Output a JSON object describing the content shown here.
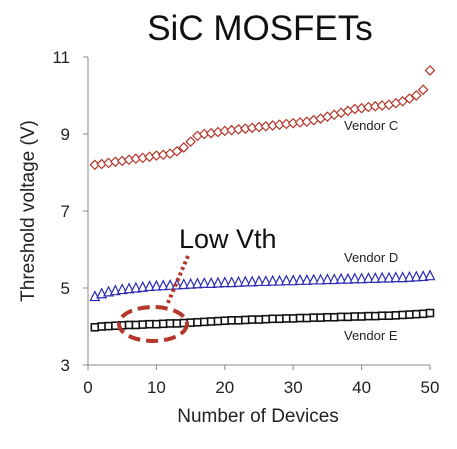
{
  "chart_data": {
    "type": "scatter",
    "title": "SiC MOSFETs",
    "xlabel": "Number of Devices",
    "ylabel": "Threshold voltage (V)",
    "xlim": [
      0,
      50
    ],
    "ylim": [
      3,
      11
    ],
    "xticks": [
      "0",
      "10",
      "20",
      "30",
      "40",
      "50"
    ],
    "yticks": [
      "3",
      "5",
      "7",
      "9",
      "11"
    ],
    "grid": false,
    "series": [
      {
        "name": "Vendor C",
        "marker": "diamond",
        "color": "#b5362a",
        "x": [
          1,
          2,
          3,
          4,
          5,
          6,
          7,
          8,
          9,
          10,
          11,
          12,
          13,
          14,
          15,
          16,
          17,
          18,
          19,
          20,
          21,
          22,
          23,
          24,
          25,
          26,
          27,
          28,
          29,
          30,
          31,
          32,
          33,
          34,
          35,
          36,
          37,
          38,
          39,
          40,
          41,
          42,
          43,
          44,
          45,
          46,
          47,
          48,
          49,
          50
        ],
        "values": [
          8.2,
          8.22,
          8.25,
          8.28,
          8.3,
          8.33,
          8.36,
          8.38,
          8.41,
          8.44,
          8.46,
          8.49,
          8.55,
          8.65,
          8.8,
          8.95,
          9.0,
          9.02,
          9.05,
          9.08,
          9.1,
          9.12,
          9.14,
          9.16,
          9.18,
          9.2,
          9.22,
          9.24,
          9.26,
          9.28,
          9.3,
          9.32,
          9.36,
          9.4,
          9.45,
          9.5,
          9.55,
          9.6,
          9.65,
          9.67,
          9.7,
          9.72,
          9.74,
          9.76,
          9.8,
          9.85,
          9.92,
          10.0,
          10.15,
          10.65
        ]
      },
      {
        "name": "Vendor D",
        "marker": "triangle",
        "color": "#2a2ab5",
        "x": [
          1,
          2,
          3,
          4,
          5,
          6,
          7,
          8,
          9,
          10,
          11,
          12,
          13,
          14,
          15,
          16,
          17,
          18,
          19,
          20,
          21,
          22,
          23,
          24,
          25,
          26,
          27,
          28,
          29,
          30,
          31,
          32,
          33,
          34,
          35,
          36,
          37,
          38,
          39,
          40,
          41,
          42,
          43,
          44,
          45,
          46,
          47,
          48,
          49,
          50
        ],
        "values": [
          4.78,
          4.85,
          4.9,
          4.93,
          4.96,
          4.98,
          5.0,
          5.02,
          5.04,
          5.05,
          5.06,
          5.07,
          5.08,
          5.09,
          5.1,
          5.11,
          5.12,
          5.12,
          5.13,
          5.14,
          5.14,
          5.15,
          5.16,
          5.16,
          5.17,
          5.17,
          5.18,
          5.18,
          5.19,
          5.19,
          5.2,
          5.2,
          5.21,
          5.21,
          5.22,
          5.22,
          5.23,
          5.23,
          5.24,
          5.24,
          5.25,
          5.25,
          5.26,
          5.26,
          5.27,
          5.27,
          5.28,
          5.29,
          5.3,
          5.32
        ]
      },
      {
        "name": "Vendor E",
        "marker": "square",
        "color": "#111111",
        "x": [
          1,
          2,
          3,
          4,
          5,
          6,
          7,
          8,
          9,
          10,
          11,
          12,
          13,
          14,
          15,
          16,
          17,
          18,
          19,
          20,
          21,
          22,
          23,
          24,
          25,
          26,
          27,
          28,
          29,
          30,
          31,
          32,
          33,
          34,
          35,
          36,
          37,
          38,
          39,
          40,
          41,
          42,
          43,
          44,
          45,
          46,
          47,
          48,
          49,
          50
        ],
        "values": [
          3.98,
          4.0,
          4.01,
          4.02,
          4.03,
          4.04,
          4.04,
          4.05,
          4.06,
          4.06,
          4.07,
          4.08,
          4.08,
          4.09,
          4.1,
          4.11,
          4.12,
          4.13,
          4.14,
          4.15,
          4.16,
          4.16,
          4.17,
          4.18,
          4.18,
          4.19,
          4.2,
          4.2,
          4.21,
          4.21,
          4.22,
          4.22,
          4.23,
          4.23,
          4.24,
          4.24,
          4.25,
          4.25,
          4.26,
          4.26,
          4.27,
          4.27,
          4.28,
          4.28,
          4.29,
          4.3,
          4.31,
          4.32,
          4.33,
          4.35
        ]
      }
    ],
    "annotations": {
      "low_vth_text": "Low Vth",
      "label_c": "Vendor C",
      "label_d": "Vendor D",
      "label_e": "Vendor E"
    },
    "colors": {
      "highlight": "#b5362a"
    }
  }
}
